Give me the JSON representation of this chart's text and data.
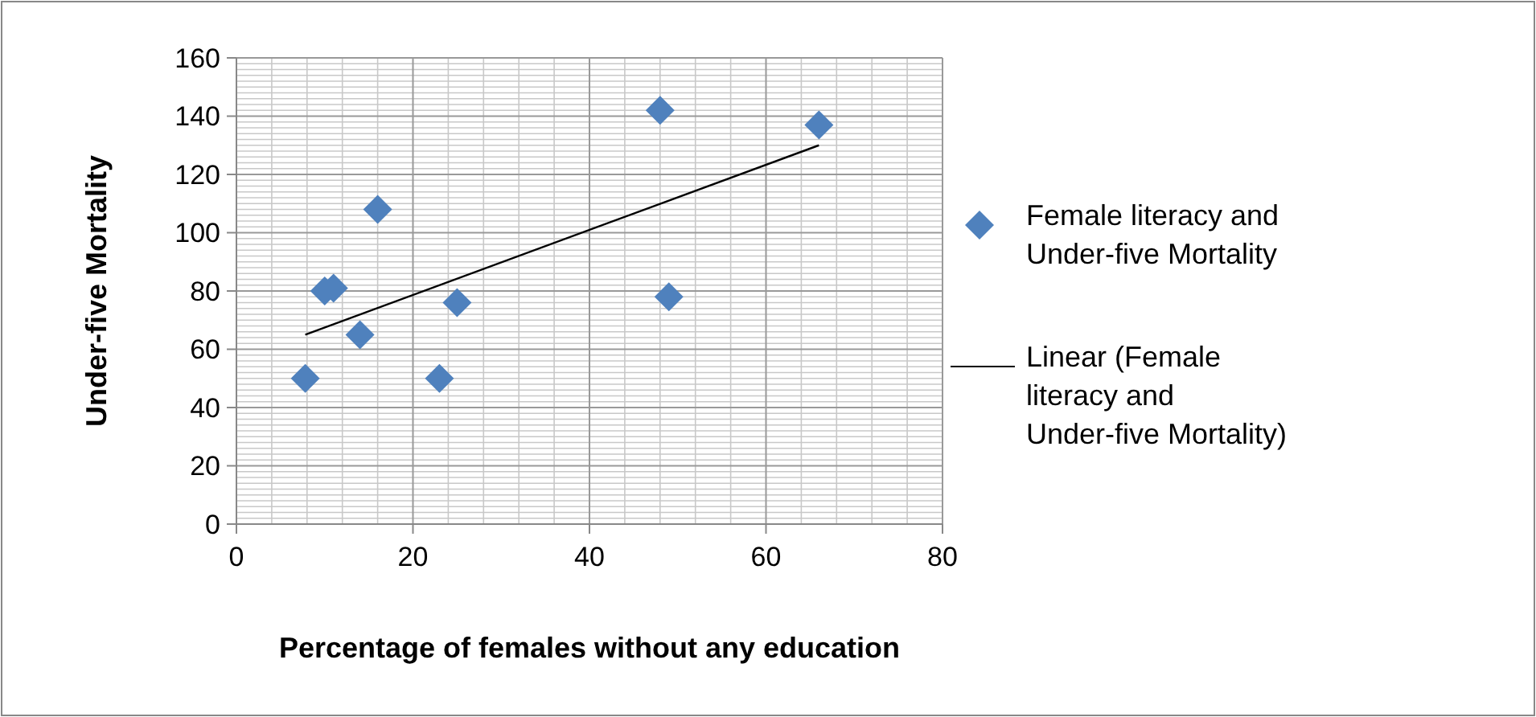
{
  "chart_data": {
    "type": "scatter",
    "xlabel": "Percentage of females without any education",
    "ylabel": "Under-five Mortality",
    "series": [
      {
        "name": "Female literacy and Under-five Mortality",
        "color": "#4f81bd",
        "marker": "diamond",
        "x": [
          7.8,
          10,
          11,
          14,
          16,
          23,
          25,
          48,
          49,
          66
        ],
        "values": [
          50,
          80,
          81,
          65,
          108,
          50,
          76,
          142,
          78,
          137
        ]
      },
      {
        "name": "Linear (Female literacy and Under-five Mortality)",
        "type": "line",
        "color": "#000000",
        "marker": "none",
        "x": [
          7.8,
          66
        ],
        "values": [
          65,
          130
        ]
      }
    ],
    "xlim": [
      0,
      80
    ],
    "xticks": [
      0,
      20,
      40,
      60,
      80
    ],
    "ylim": [
      0,
      160
    ],
    "yticks": [
      0,
      20,
      40,
      60,
      80,
      100,
      120,
      140,
      160
    ],
    "grid": true,
    "legend": "right"
  }
}
